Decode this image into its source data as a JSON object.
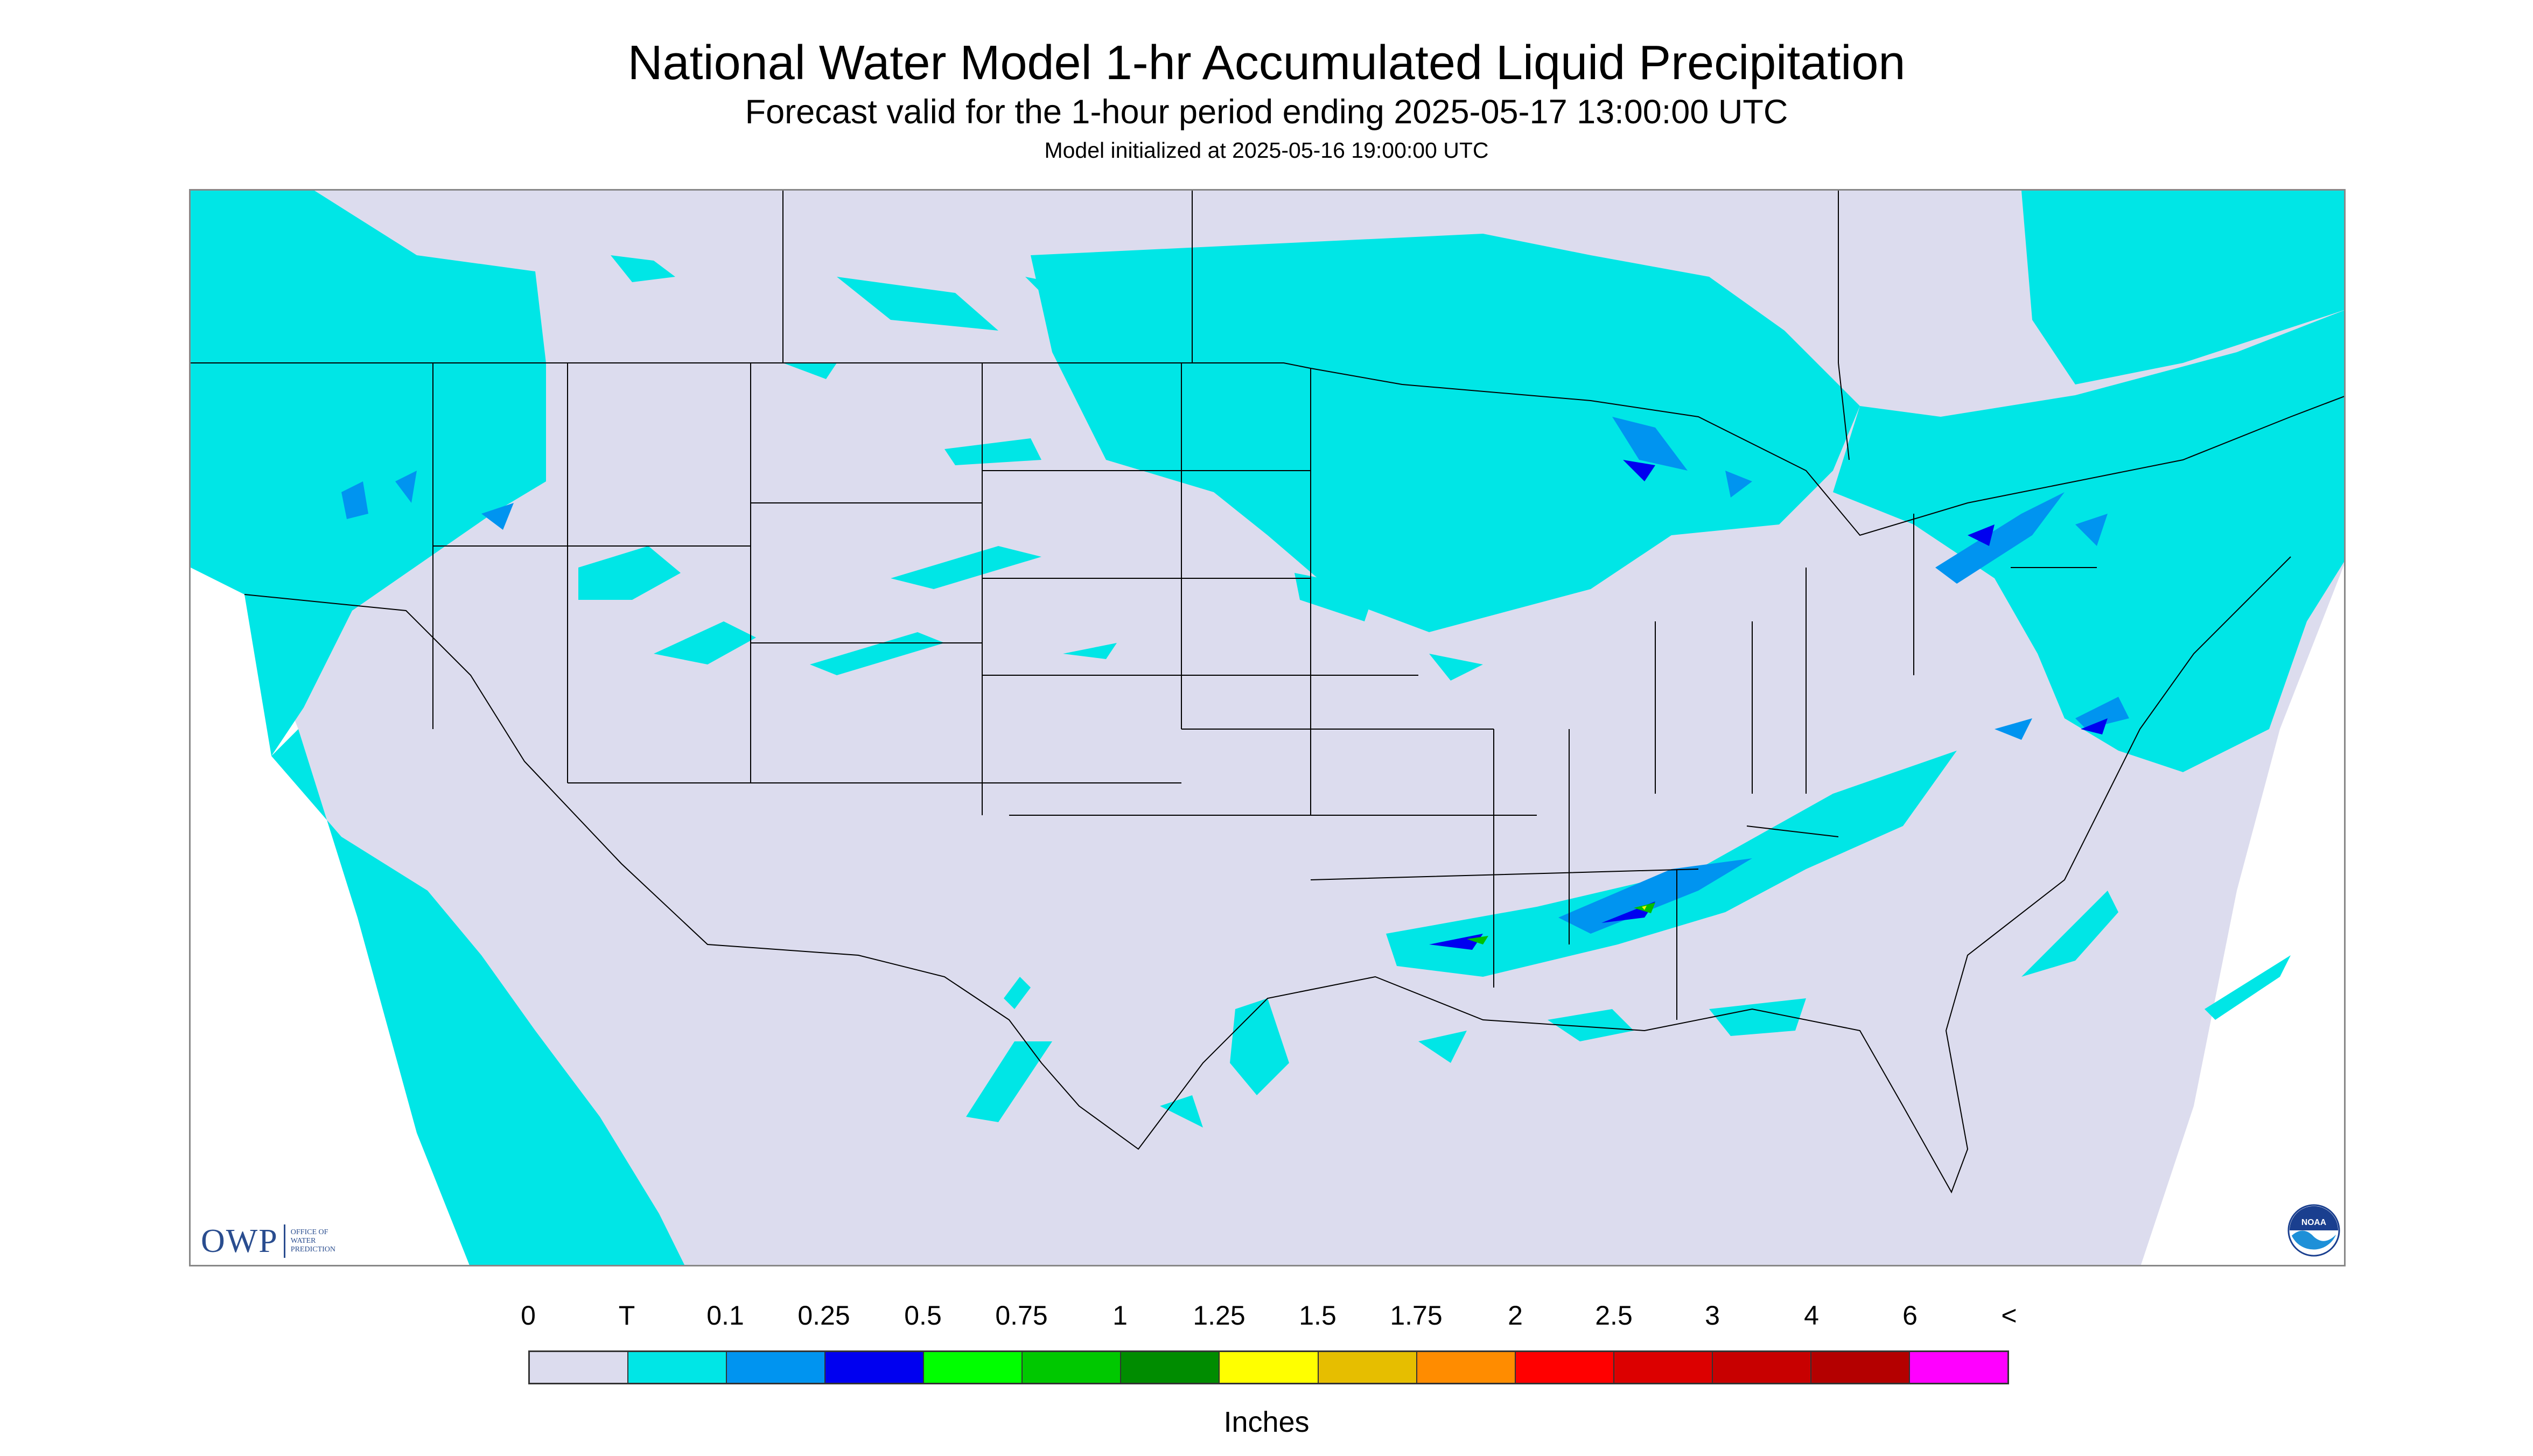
{
  "title": "National Water Model 1-hr Accumulated Liquid Precipitation",
  "subtitle": "Forecast valid for the 1-hour period ending 2025-05-17 13:00:00 UTC",
  "initialized": "Model initialized at 2025-05-16 19:00:00 UTC",
  "logo": {
    "owp_abbrev": "OWP",
    "owp_lines": [
      "OFFICE OF",
      "WATER",
      "PREDICTION"
    ],
    "noaa_text": "NOAA"
  },
  "colors": {
    "map_background": "#dcdcee",
    "trace": "#00e6e6",
    "light_blue": "#0094f0",
    "blue": "#0000f0",
    "green": "#00c000",
    "yellow": "#f0f000",
    "border": "#000000"
  },
  "legend": {
    "labels": [
      "0",
      "T",
      "0.1",
      "0.25",
      "0.5",
      "0.75",
      "1",
      "1.25",
      "1.5",
      "1.75",
      "2",
      "2.5",
      "3",
      "4",
      "6",
      "<"
    ],
    "colors": [
      "#dcdcee",
      "#00e6e6",
      "#0094f0",
      "#0000f0",
      "#00ff00",
      "#00c800",
      "#008c00",
      "#ffff00",
      "#e6be00",
      "#ff8c00",
      "#ff0000",
      "#dc0000",
      "#c80000",
      "#b40000",
      "#ff00ff",
      "#9650c8"
    ],
    "units": "Inches"
  }
}
